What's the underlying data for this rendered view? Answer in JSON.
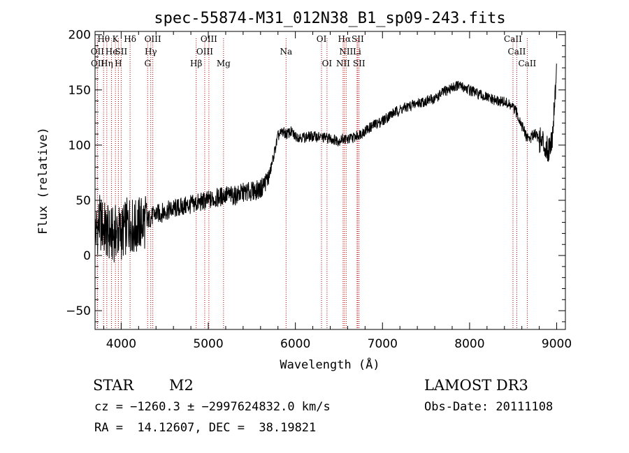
{
  "chart_data": {
    "type": "line",
    "title": "spec-55874-M31_012N38_B1_sp09-243.fits",
    "xlabel": "Wavelength (Å)",
    "ylabel": "Flux (relative)",
    "xlim": [
      3700,
      9100
    ],
    "ylim": [
      -67,
      203
    ],
    "xticks": [
      4000,
      5000,
      6000,
      7000,
      8000,
      9000
    ],
    "yticks": [
      -50,
      0,
      50,
      100,
      150,
      200
    ],
    "series": [
      {
        "name": "spectrum",
        "x": [
          3700,
          3750,
          3800,
          3850,
          3900,
          3950,
          4000,
          4050,
          4100,
          4150,
          4200,
          4250,
          4300,
          4350,
          4400,
          4450,
          4500,
          4600,
          4700,
          4800,
          4900,
          5000,
          5100,
          5200,
          5300,
          5400,
          5500,
          5600,
          5650,
          5700,
          5750,
          5800,
          5850,
          5900,
          5950,
          6000,
          6100,
          6200,
          6300,
          6400,
          6500,
          6550,
          6600,
          6700,
          6800,
          6900,
          7000,
          7100,
          7200,
          7300,
          7400,
          7500,
          7600,
          7700,
          7800,
          7850,
          7900,
          7950,
          8000,
          8100,
          8200,
          8300,
          8400,
          8500,
          8550,
          8600,
          8650,
          8700,
          8750,
          8800,
          8850,
          8900,
          8950,
          9000
        ],
        "y": [
          20,
          30,
          25,
          20,
          18,
          22,
          20,
          25,
          30,
          24,
          28,
          30,
          32,
          35,
          38,
          38,
          40,
          42,
          44,
          46,
          48,
          50,
          52,
          55,
          54,
          57,
          58,
          60,
          66,
          72,
          90,
          108,
          112,
          110,
          112,
          108,
          107,
          108,
          107,
          106,
          104,
          106,
          105,
          108,
          113,
          118,
          122,
          128,
          132,
          135,
          138,
          140,
          142,
          148,
          152,
          154,
          153,
          152,
          150,
          146,
          143,
          140,
          139,
          134,
          128,
          118,
          108,
          106,
          112,
          105,
          102,
          95,
          108,
          170
        ]
      }
    ],
    "line_markers": [
      {
        "label": "Hθ",
        "x": 3798,
        "row": 1
      },
      {
        "label": "OII",
        "x": 3727,
        "row": 2
      },
      {
        "label": "OII",
        "x": 3729,
        "row": 3
      },
      {
        "label": "Hη",
        "x": 3835,
        "row": 3
      },
      {
        "label": "He",
        "x": 3889,
        "row": 2
      },
      {
        "label": "K",
        "x": 3934,
        "row": 1
      },
      {
        "label": "H",
        "x": 3968,
        "row": 3
      },
      {
        "label": "SII",
        "x": 4000,
        "row": 2
      },
      {
        "label": "Hδ",
        "x": 4102,
        "row": 1
      },
      {
        "label": "OIII",
        "x": 4363,
        "row": 1
      },
      {
        "label": "Hγ",
        "x": 4340,
        "row": 2
      },
      {
        "label": "G",
        "x": 4304,
        "row": 3
      },
      {
        "label": "Hβ",
        "x": 4861,
        "row": 3
      },
      {
        "label": "OIII",
        "x": 5007,
        "row": 1
      },
      {
        "label": "OIII",
        "x": 4959,
        "row": 2
      },
      {
        "label": "Mg",
        "x": 5175,
        "row": 3
      },
      {
        "label": "Na",
        "x": 5893,
        "row": 2
      },
      {
        "label": "OI",
        "x": 6300,
        "row": 1
      },
      {
        "label": "OI",
        "x": 6363,
        "row": 3
      },
      {
        "label": "Hα",
        "x": 6563,
        "row": 1
      },
      {
        "label": "SII",
        "x": 6716,
        "row": 1
      },
      {
        "label": "NII",
        "x": 6583,
        "row": 2
      },
      {
        "label": "Li",
        "x": 6708,
        "row": 2
      },
      {
        "label": "NII",
        "x": 6548,
        "row": 3
      },
      {
        "label": "SII",
        "x": 6731,
        "row": 3
      },
      {
        "label": "CaII",
        "x": 8498,
        "row": 1
      },
      {
        "label": "CaII",
        "x": 8542,
        "row": 2
      },
      {
        "label": "CaII",
        "x": 8662,
        "row": 3
      }
    ]
  },
  "info": {
    "object_class": "STAR",
    "subclass": "M2",
    "survey": "LAMOST DR3",
    "cz": "cz = −1260.3 ± −2997624832.0 km/s",
    "obs_date": "Obs-Date: 20111108",
    "radec": "RA =  14.12607, DEC =  38.19821"
  },
  "colors": {
    "line_marker": "#b30000",
    "spectrum": "#000000"
  }
}
